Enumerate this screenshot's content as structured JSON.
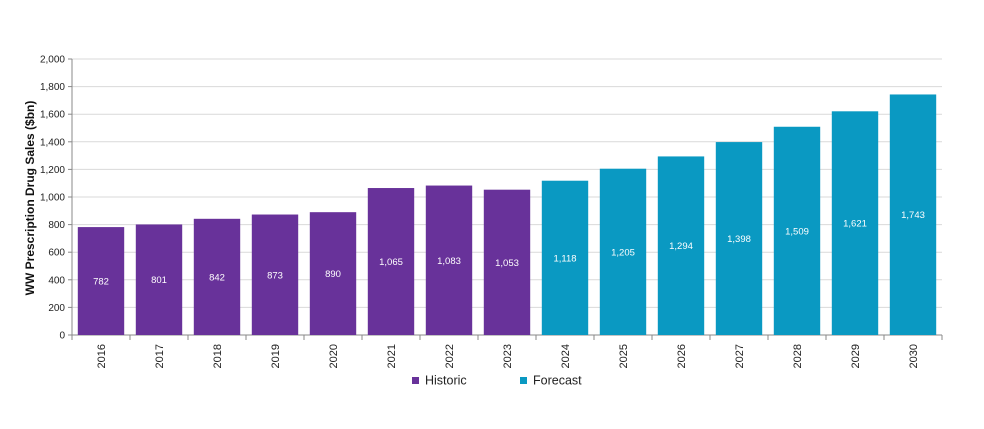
{
  "chart_data": {
    "type": "bar",
    "title": "",
    "xlabel": "",
    "ylabel": "WW Prescription Drug Sales ($bn)",
    "ylim": [
      0,
      2000
    ],
    "yticks": [
      "0",
      "200",
      "400",
      "600",
      "800",
      "1,000",
      "1,200",
      "1,400",
      "1,600",
      "1,800",
      "2,000"
    ],
    "categories": [
      "2016",
      "2017",
      "2018",
      "2019",
      "2020",
      "2021",
      "2022",
      "2023",
      "2024",
      "2025",
      "2026",
      "2027",
      "2028",
      "2029",
      "2030"
    ],
    "series": [
      {
        "name": "Historic",
        "color": "#68329a",
        "values": [
          782,
          801,
          842,
          873,
          890,
          1065,
          1083,
          1053,
          null,
          null,
          null,
          null,
          null,
          null,
          null
        ],
        "labels": [
          "782",
          "801",
          "842",
          "873",
          "890",
          "1,065",
          "1,083",
          "1,053",
          "",
          "",
          "",
          "",
          "",
          "",
          ""
        ]
      },
      {
        "name": "Forecast",
        "color": "#0a99c2",
        "values": [
          null,
          null,
          null,
          null,
          null,
          null,
          null,
          null,
          1118,
          1205,
          1294,
          1398,
          1509,
          1621,
          1743
        ],
        "labels": [
          "",
          "",
          "",
          "",
          "",
          "",
          "",
          "",
          "1,118",
          "1,205",
          "1,294",
          "1,398",
          "1,509",
          "1,621",
          "1,743"
        ]
      }
    ],
    "grid": "horizontal",
    "legend_position": "bottom"
  }
}
